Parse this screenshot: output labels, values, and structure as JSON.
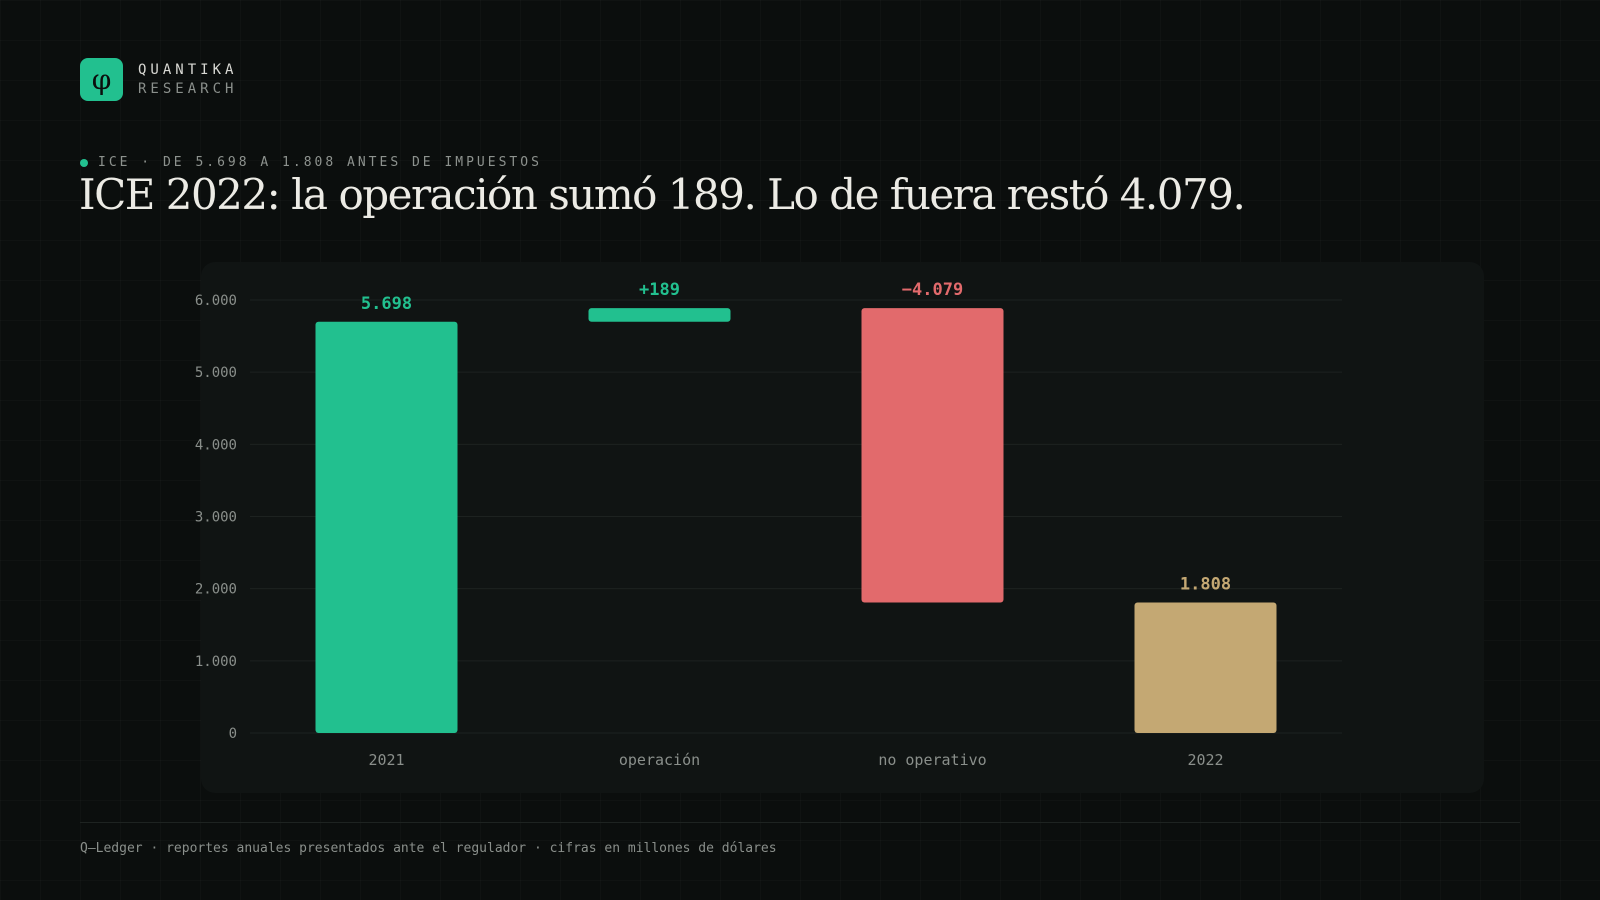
{
  "brand": {
    "logo_glyph": "φ",
    "name": "QUANTIKA",
    "sub": "RESEARCH"
  },
  "kicker": "ICE · DE 5.698 A 1.808 ANTES DE IMPUESTOS",
  "title": "ICE 2022: la operación sumó 189. Lo de fuera restó 4.079.",
  "source": "Q–Ledger · reportes anuales presentados ante el regulador · cifras en millones de dólares",
  "colors": {
    "background": "#0b0e0d",
    "panel": "#101413",
    "accent": "#22c08f",
    "positive": "#22c08f",
    "negative": "#e26a6c",
    "total_2022": "#c4a873",
    "axis_text": "#8a8f8b"
  },
  "chart_data": {
    "type": "bar",
    "subtype": "waterfall",
    "categories": [
      "2021",
      "operación",
      "no operativo",
      "2022"
    ],
    "steps": [
      {
        "category": "2021",
        "kind": "total",
        "start": 0,
        "end": 5698,
        "label": "5.698",
        "color": "#22c08f"
      },
      {
        "category": "operación",
        "kind": "delta",
        "start": 5698,
        "end": 5887,
        "label": "+189",
        "color": "#22c08f"
      },
      {
        "category": "no operativo",
        "kind": "delta",
        "start": 5887,
        "end": 1808,
        "label": "−4.079",
        "color": "#e26a6c"
      },
      {
        "category": "2022",
        "kind": "total",
        "start": 0,
        "end": 1808,
        "label": "1.808",
        "color": "#c4a873"
      }
    ],
    "ylim": [
      0,
      6000
    ],
    "yticks": [
      0,
      1000,
      2000,
      3000,
      4000,
      5000,
      6000
    ],
    "ytick_labels": [
      "0",
      "1.000",
      "2.000",
      "3.000",
      "4.000",
      "5.000",
      "6.000"
    ],
    "grid": true,
    "legend": "none",
    "xlabel": "",
    "ylabel": ""
  }
}
